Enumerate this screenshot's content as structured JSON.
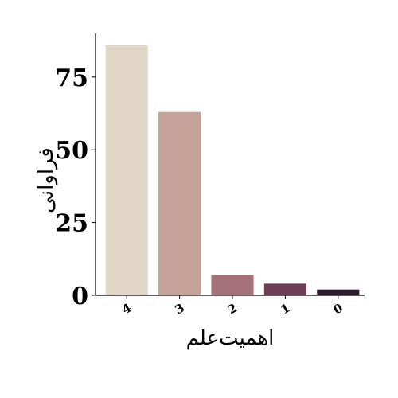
{
  "chart_data": {
    "type": "bar",
    "title": "",
    "xlabel": "اهمیت‌علم",
    "ylabel": "فراوانی",
    "categories": [
      "4",
      "3",
      "2",
      "1",
      "0"
    ],
    "values": [
      86,
      63,
      7,
      4,
      2
    ],
    "ylim": [
      0,
      90
    ],
    "yticks": [
      0,
      25,
      50,
      75
    ],
    "ytick_labels": [
      "0",
      "25",
      "50",
      "75"
    ],
    "grid": false,
    "legend": "none",
    "colors": [
      "#e2d6c7",
      "#c6a398",
      "#a6707a",
      "#6f3d55",
      "#2e1a2f"
    ]
  }
}
